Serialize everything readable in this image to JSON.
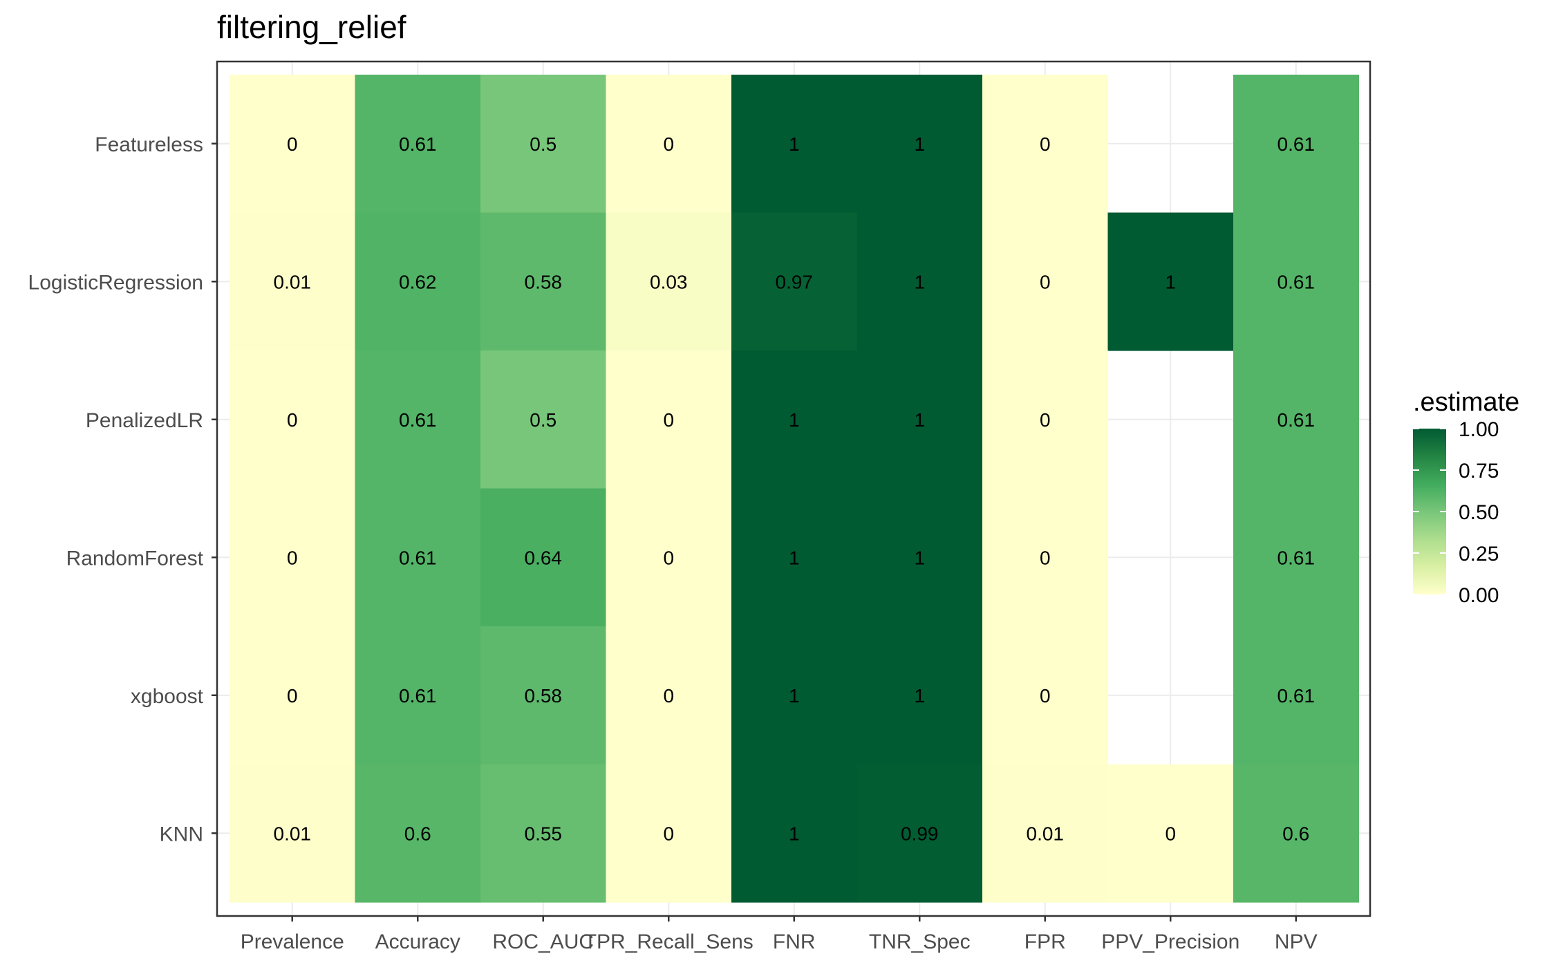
{
  "chart_data": {
    "type": "heatmap",
    "title": "filtering_relief",
    "x_categories": [
      "Prevalence",
      "Accuracy",
      "ROC_AUC",
      "TPR_Recall_Sens",
      "FNR",
      "TNR_Spec",
      "FPR",
      "PPV_Precision",
      "NPV"
    ],
    "y_categories": [
      "Featureless",
      "LogisticRegression",
      "PenalizedLR",
      "RandomForest",
      "xgboost",
      "KNN"
    ],
    "values": [
      [
        0,
        0.61,
        0.5,
        0,
        1,
        1,
        0,
        null,
        0.61
      ],
      [
        0.01,
        0.62,
        0.58,
        0.03,
        0.97,
        1,
        0,
        1,
        0.61
      ],
      [
        0,
        0.61,
        0.5,
        0,
        1,
        1,
        0,
        null,
        0.61
      ],
      [
        0,
        0.61,
        0.64,
        0,
        1,
        1,
        0,
        null,
        0.61
      ],
      [
        0,
        0.61,
        0.58,
        0,
        1,
        1,
        0,
        null,
        0.61
      ],
      [
        0.01,
        0.6,
        0.55,
        0,
        1,
        0.99,
        0.01,
        0,
        0.6
      ]
    ],
    "labels": [
      [
        "0",
        "0.61",
        "0.5",
        "0",
        "1",
        "1",
        "0",
        "",
        "0.61"
      ],
      [
        "0.01",
        "0.62",
        "0.58",
        "0.03",
        "0.97",
        "1",
        "0",
        "1",
        "0.61"
      ],
      [
        "0",
        "0.61",
        "0.5",
        "0",
        "1",
        "1",
        "0",
        "",
        "0.61"
      ],
      [
        "0",
        "0.61",
        "0.64",
        "0",
        "1",
        "1",
        "0",
        "",
        "0.61"
      ],
      [
        "0",
        "0.61",
        "0.58",
        "0",
        "1",
        "1",
        "0",
        "",
        "0.61"
      ],
      [
        "0.01",
        "0.6",
        "0.55",
        "0",
        "1",
        "0.99",
        "0.01",
        "0",
        "0.6"
      ]
    ],
    "legend": {
      "title": ".estimate",
      "ticks": [
        1.0,
        0.75,
        0.5,
        0.25,
        0.0
      ],
      "tick_labels": [
        "1.00",
        "0.75",
        "0.50",
        "0.25",
        "0.00"
      ],
      "placement": "right"
    },
    "color_scale": {
      "name": "YlGn",
      "domain": [
        0,
        1
      ],
      "stops": [
        "#ffffcc",
        "#d9f0a3",
        "#addd8e",
        "#78c679",
        "#41ab5d",
        "#238443",
        "#005a32"
      ]
    },
    "grid": true,
    "na_color": "#ffffff"
  }
}
